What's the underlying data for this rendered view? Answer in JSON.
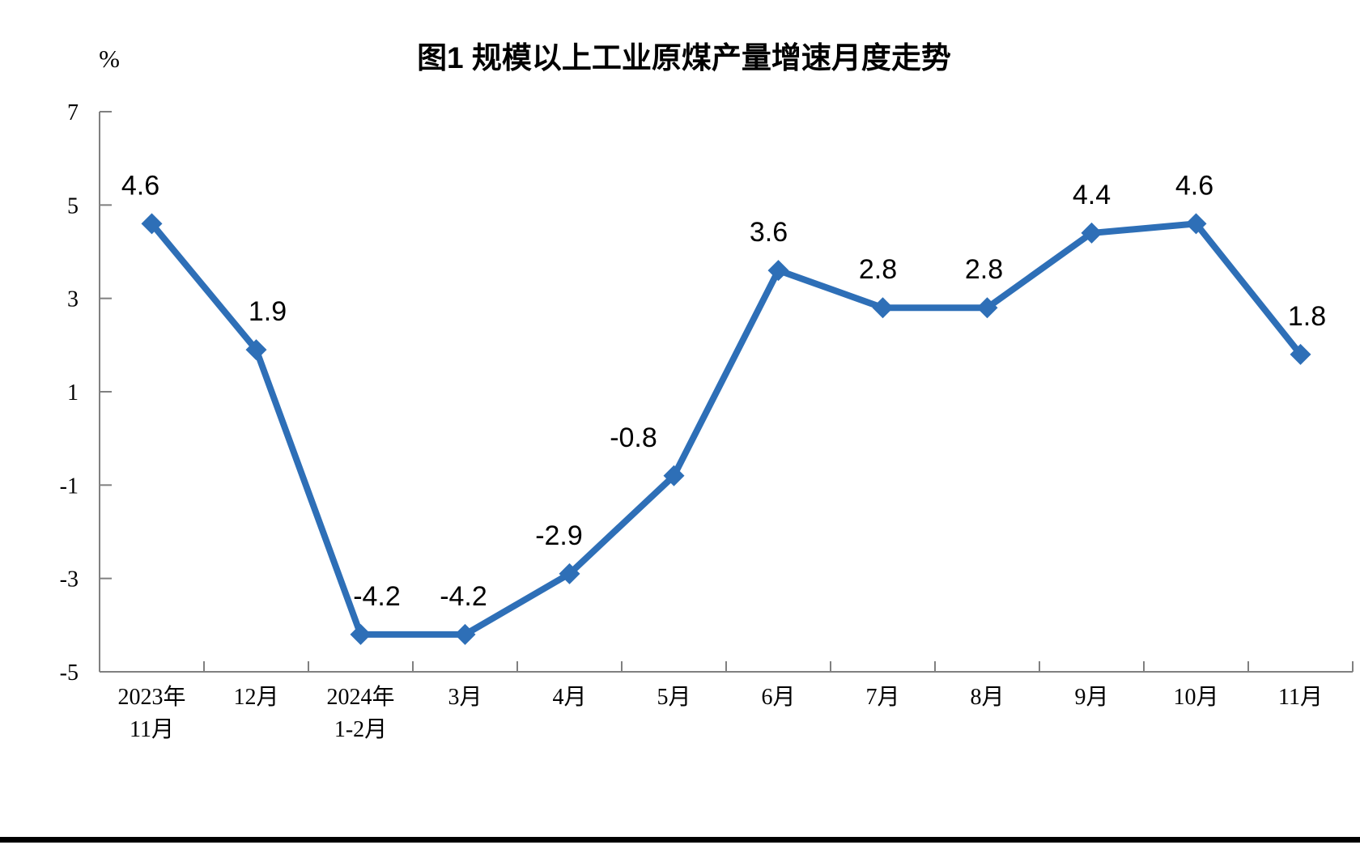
{
  "page": {
    "divider_color": "#000000"
  },
  "chart_data": {
    "type": "line",
    "title": "图1  规模以上工业原煤产量增速月度走势",
    "ylabel": "%",
    "xlabel": "",
    "categories": [
      "2023年\n11月",
      "12月",
      "2024年\n1-2月",
      "3月",
      "4月",
      "5月",
      "6月",
      "7月",
      "8月",
      "9月",
      "10月",
      "11月"
    ],
    "values": [
      4.6,
      1.9,
      -4.2,
      -4.2,
      -2.9,
      -0.8,
      3.6,
      2.8,
      2.8,
      4.4,
      4.6,
      1.8
    ],
    "data_labels": [
      "4.6",
      "1.9",
      "-4.2",
      "-4.2",
      "-2.9",
      "-0.8",
      "3.6",
      "2.8",
      "2.8",
      "4.4",
      "4.6",
      "1.8"
    ],
    "ylim": [
      -5,
      7
    ],
    "y_ticks": [
      7,
      5,
      3,
      1,
      -1,
      -3,
      -5
    ],
    "grid": false,
    "legend": "none",
    "marker": "diamond",
    "line_color": "#2E6FB7",
    "axis_color": "#808080",
    "label_color": "#000000",
    "label_dx": [
      -14,
      14,
      20,
      -2,
      -13,
      -50,
      -12,
      -6,
      -4,
      0,
      -2,
      8
    ],
    "label_dy": -45
  }
}
